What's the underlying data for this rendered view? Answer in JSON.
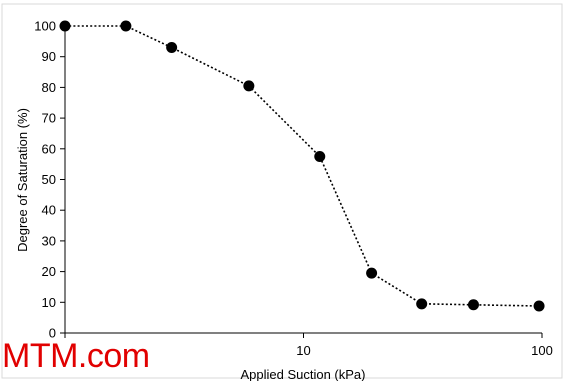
{
  "watermark": "MTM.com",
  "chart_data": {
    "type": "line",
    "title": "",
    "xlabel": "Applied Suction (kPa)",
    "ylabel": "Degree of Saturation (%)",
    "x_scale": "log",
    "xlim": [
      1,
      100
    ],
    "ylim": [
      0,
      100
    ],
    "x_ticks": [
      1,
      10,
      100
    ],
    "x_tick_labels": [
      "",
      "10",
      "100"
    ],
    "y_ticks": [
      0,
      10,
      20,
      30,
      40,
      50,
      60,
      70,
      80,
      90,
      100
    ],
    "y_tick_labels": [
      "0",
      "10",
      "20",
      "30",
      "40",
      "50",
      "60",
      "70",
      "80",
      "90",
      "100"
    ],
    "grid": false,
    "legend": "none",
    "series": [
      {
        "x": [
          1,
          1.8,
          2.8,
          5.9,
          11.7,
          19.3,
          31.3,
          51.6,
          97.2
        ],
        "y": [
          100,
          100,
          93,
          80.5,
          57.5,
          19.5,
          9.5,
          9.2,
          8.8
        ],
        "color": "#000000",
        "line_style": "dotted",
        "marker": "circle"
      }
    ]
  }
}
